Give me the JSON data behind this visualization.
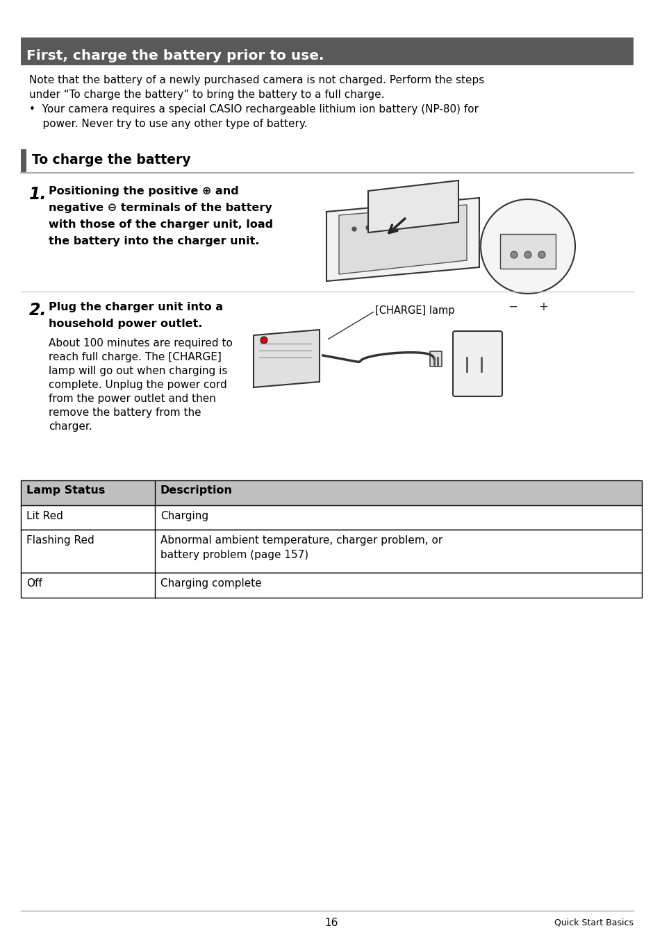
{
  "page_bg": "#ffffff",
  "header_bg": "#595959",
  "header_text": "First, charge the battery prior to use.",
  "header_text_color": "#ffffff",
  "section_bar_color": "#595959",
  "section_title": "To charge the battery",
  "body_text_color": "#000000",
  "table_header_bg": "#c0c0c0",
  "table_border_color": "#000000",
  "intro_line1": "Note that the battery of a newly purchased camera is not charged. Perform the steps",
  "intro_line2": "under “To charge the battery” to bring the battery to a full charge.",
  "intro_line3": "•  Your camera requires a special CASIO rechargeable lithium ion battery (NP-80) for",
  "intro_line4": "    power. Never try to use any other type of battery.",
  "step1_line1": "Positioning the positive ⊕ and",
  "step1_line2": "negative ⊖ terminals of the battery",
  "step1_line3": "with those of the charger unit, load",
  "step1_line4": "the battery into the charger unit.",
  "step2_line1": "Plug the charger unit into a",
  "step2_line2": "household power outlet.",
  "step2_body_lines": [
    "About 100 minutes are required to",
    "reach full charge. The [CHARGE]",
    "lamp will go out when charging is",
    "complete. Unplug the power cord",
    "from the power outlet and then",
    "remove the battery from the",
    "charger."
  ],
  "charge_lamp_label": "[CHARGE] lamp",
  "table_headers": [
    "Lamp Status",
    "Description"
  ],
  "table_rows": [
    [
      "Lit Red",
      "Charging"
    ],
    [
      "Flashing Red",
      "Abnormal ambient temperature, charger problem, or\nbattery problem (page 157)"
    ],
    [
      "Off",
      "Charging complete"
    ]
  ],
  "footer_page": "16",
  "footer_right": "Quick Start Basics"
}
